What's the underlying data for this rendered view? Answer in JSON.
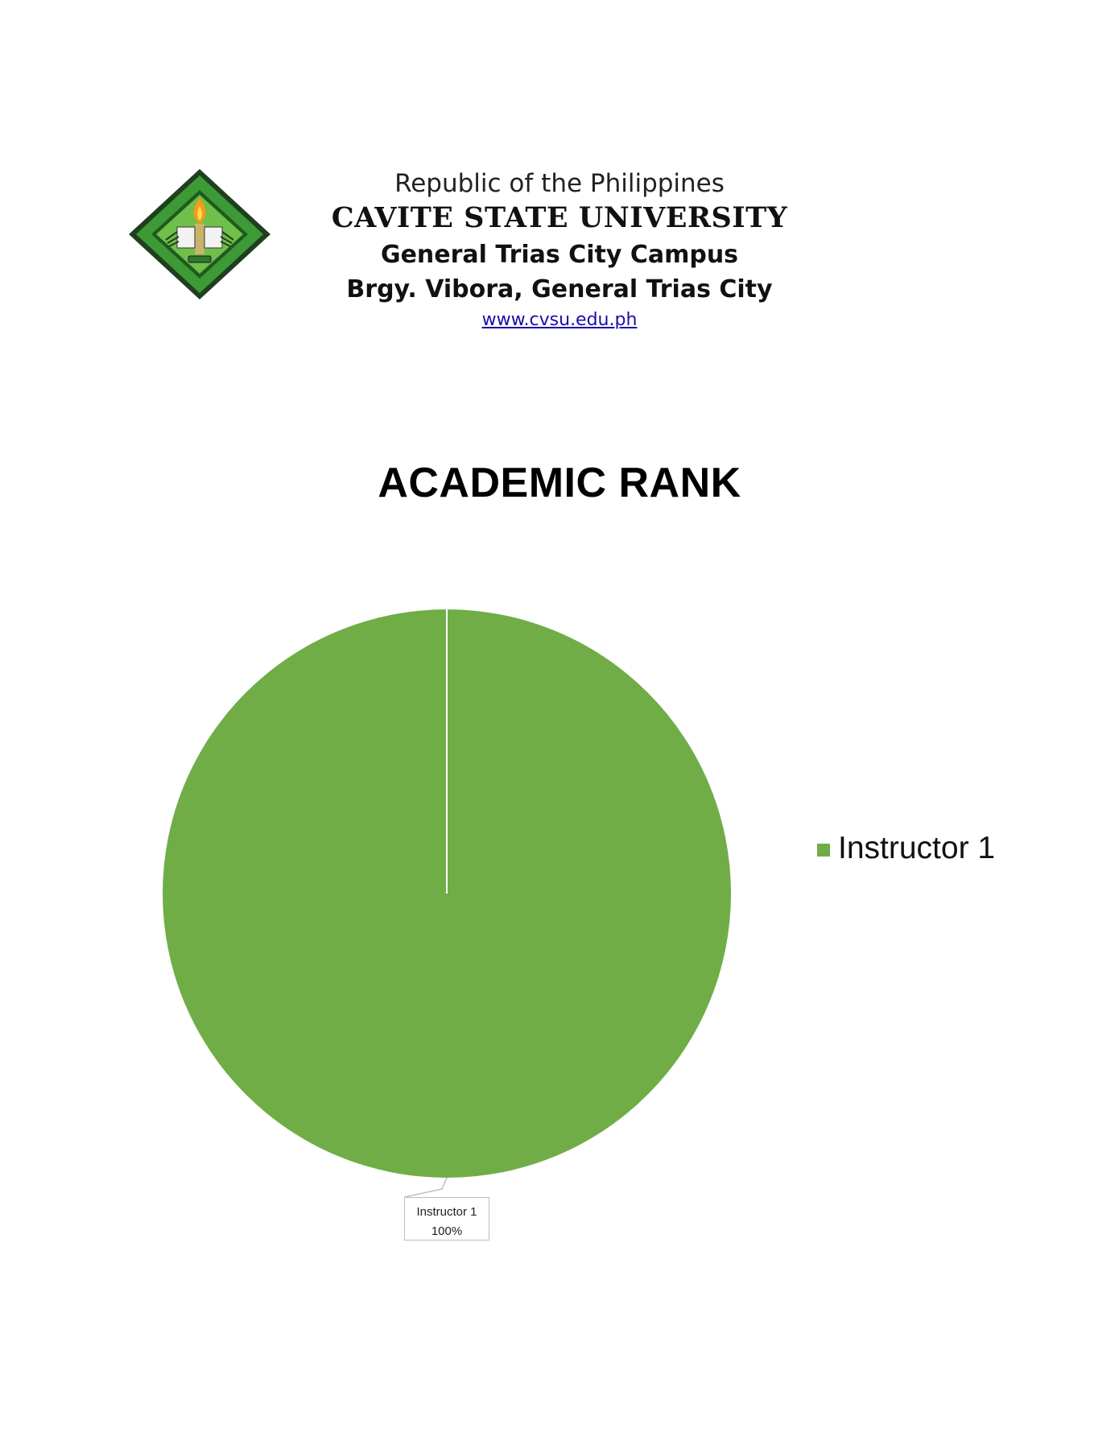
{
  "letterhead": {
    "republic": "Republic of the Philippines",
    "university": "CAVITE STATE UNIVERSITY",
    "campus": "General Trias City Campus",
    "address": "Brgy. Vibora, General Trias City",
    "website": "www.cvsu.edu.ph"
  },
  "colors": {
    "slice": "#70ad47",
    "seal_green": "#2e8b2e",
    "seal_border": "#1f3f1f",
    "link": "#1a0dab"
  },
  "chart_data": {
    "type": "pie",
    "title": "ACADEMIC RANK",
    "categories": [
      "Instructor 1"
    ],
    "values": [
      100
    ],
    "data_labels": [
      {
        "category": "Instructor 1",
        "percent": "100%"
      }
    ],
    "legend": {
      "placement": "right",
      "entries": [
        "Instructor 1"
      ]
    }
  }
}
